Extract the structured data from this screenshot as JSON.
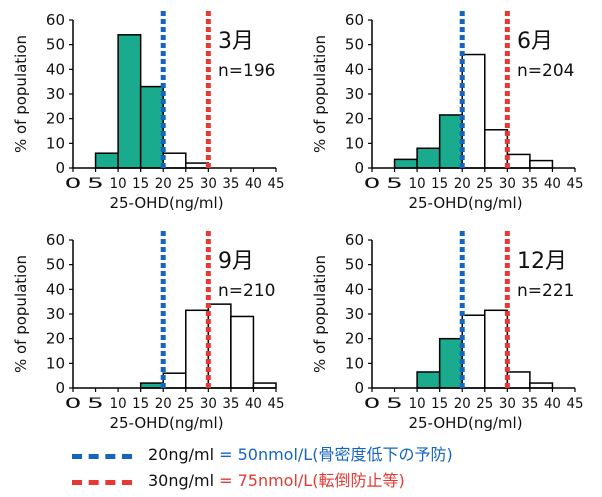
{
  "chart_data": [
    {
      "type": "bar",
      "month_label": "3月",
      "n_label": "n=196",
      "bin_edges": [
        5,
        10,
        15,
        20,
        25,
        30,
        35,
        40,
        45
      ],
      "values": [
        6,
        54,
        33,
        6,
        2,
        0,
        0,
        0
      ],
      "xticks": [
        "0",
        "5",
        "10",
        "15",
        "20",
        "25",
        "30",
        "35",
        "40",
        "45"
      ],
      "yticks": [
        "0",
        "10",
        "20",
        "30",
        "40",
        "50",
        "60"
      ],
      "xlabel": "25-OHD(ng/ml)",
      "ylabel": "% of population",
      "xlim": [
        0,
        45
      ],
      "ylim": [
        0,
        60
      ]
    },
    {
      "type": "bar",
      "month_label": "6月",
      "n_label": "n=204",
      "bin_edges": [
        5,
        10,
        15,
        20,
        25,
        30,
        35,
        40,
        45
      ],
      "values": [
        3.5,
        8,
        21.5,
        46,
        15.5,
        5.5,
        3,
        0
      ],
      "xticks": [
        "0",
        "5",
        "10",
        "15",
        "20",
        "25",
        "30",
        "35",
        "40",
        "45"
      ],
      "yticks": [
        "0",
        "10",
        "20",
        "30",
        "40",
        "50",
        "60"
      ],
      "xlabel": "25-OHD(ng/ml)",
      "ylabel": "% of population",
      "xlim": [
        0,
        45
      ],
      "ylim": [
        0,
        60
      ]
    },
    {
      "type": "bar",
      "month_label": "9月",
      "n_label": "n=210",
      "bin_edges": [
        5,
        10,
        15,
        20,
        25,
        30,
        35,
        40,
        45
      ],
      "values": [
        0,
        0,
        2,
        6,
        31.5,
        34,
        29,
        2
      ],
      "xticks": [
        "0",
        "5",
        "10",
        "15",
        "20",
        "25",
        "30",
        "35",
        "40",
        "45"
      ],
      "yticks": [
        "0",
        "10",
        "20",
        "30",
        "40",
        "50",
        "60"
      ],
      "xlabel": "25-OHD(ng/ml)",
      "ylabel": "% of population",
      "xlim": [
        0,
        45
      ],
      "ylim": [
        0,
        60
      ]
    },
    {
      "type": "bar",
      "month_label": "12月",
      "n_label": "n=221",
      "bin_edges": [
        5,
        10,
        15,
        20,
        25,
        30,
        35,
        40,
        45
      ],
      "values": [
        0,
        6.5,
        20,
        29.5,
        31.5,
        6.5,
        2,
        0
      ],
      "xticks": [
        "0",
        "5",
        "10",
        "15",
        "20",
        "25",
        "30",
        "35",
        "40",
        "45"
      ],
      "yticks": [
        "0",
        "10",
        "20",
        "30",
        "40",
        "50",
        "60"
      ],
      "xlabel": "25-OHD(ng/ml)",
      "ylabel": "% of population",
      "xlim": [
        0,
        45
      ],
      "ylim": [
        0,
        60
      ]
    }
  ],
  "reference_lines": [
    {
      "x": 20,
      "color": "#1565c0"
    },
    {
      "x": 30,
      "color": "#e53935"
    }
  ],
  "bar_colors": {
    "deficient_fill": "#1aaa8e",
    "sufficient_fill": "#ffffff",
    "edge": "#000000"
  },
  "legend": [
    {
      "key": "20ng/ml",
      "eq": "=",
      "detail": "50nmol/L(骨密度低下の予防)",
      "color": "#1565c0",
      "text_color": "#1565c0"
    },
    {
      "key": "30ng/ml",
      "eq": "=",
      "detail": "75nmol/L(転倒防止等)",
      "color": "#e53935",
      "text_color": "#e53935"
    }
  ]
}
